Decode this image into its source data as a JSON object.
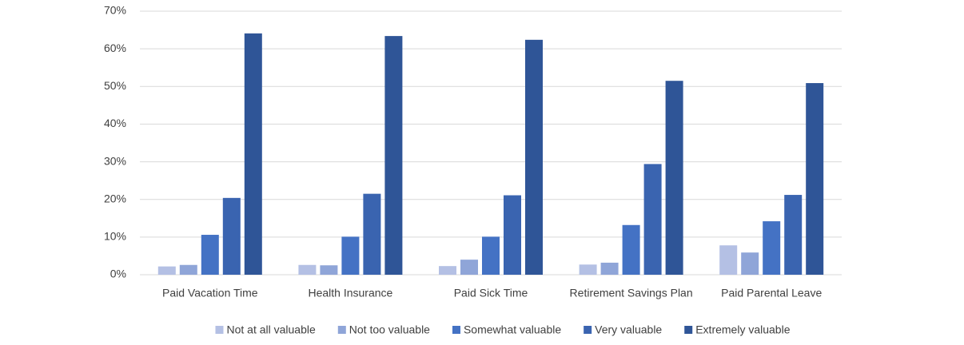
{
  "chart_data": {
    "type": "bar",
    "categories": [
      "Paid Vacation Time",
      "Health Insurance",
      "Paid Sick Time",
      "Retirement Savings Plan",
      "Paid Parental Leave"
    ],
    "series": [
      {
        "name": "Not at all valuable",
        "color": "#b4c0e4",
        "values": [
          2.2,
          2.6,
          2.3,
          2.7,
          7.8
        ]
      },
      {
        "name": "Not too valuable",
        "color": "#8fa5d8",
        "values": [
          2.6,
          2.5,
          4.0,
          3.2,
          5.9
        ]
      },
      {
        "name": "Somewhat valuable",
        "color": "#4472c4",
        "values": [
          10.6,
          10.1,
          10.1,
          13.2,
          14.2
        ]
      },
      {
        "name": "Very valuable",
        "color": "#3a64b0",
        "values": [
          20.4,
          21.5,
          21.1,
          29.4,
          21.2
        ]
      },
      {
        "name": "Extremely valuable",
        "color": "#2f5597",
        "values": [
          64.1,
          63.4,
          62.4,
          51.5,
          50.9
        ]
      }
    ],
    "ylim": [
      0,
      70
    ],
    "yticks": [
      {
        "value": 0,
        "label": "0%"
      },
      {
        "value": 10,
        "label": "10%"
      },
      {
        "value": 20,
        "label": "20%"
      },
      {
        "value": 30,
        "label": "30%"
      },
      {
        "value": 40,
        "label": "40%"
      },
      {
        "value": 50,
        "label": "50%"
      },
      {
        "value": 60,
        "label": "60%"
      },
      {
        "value": 70,
        "label": "70%"
      }
    ],
    "grid": true,
    "legend": "bottom"
  }
}
